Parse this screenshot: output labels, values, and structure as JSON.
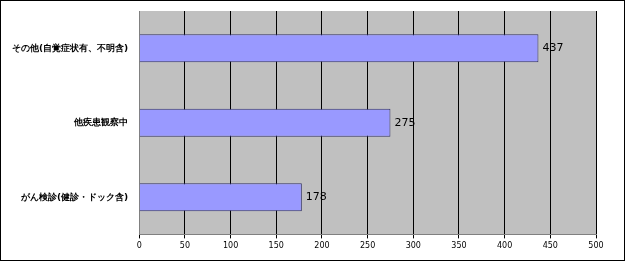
{
  "chart_data": {
    "type": "bar",
    "orientation": "horizontal",
    "categories": [
      "その他(自覚症状有、不明含)",
      "他疾患観察中",
      "がん検診(健診・ドック含)"
    ],
    "values": [
      437,
      275,
      178
    ],
    "color": "#9999ff",
    "xlim": [
      0,
      500
    ],
    "xticks": [
      0,
      50,
      100,
      150,
      200,
      250,
      300,
      350,
      400,
      450,
      500
    ],
    "grid": true,
    "data_labels": true
  }
}
